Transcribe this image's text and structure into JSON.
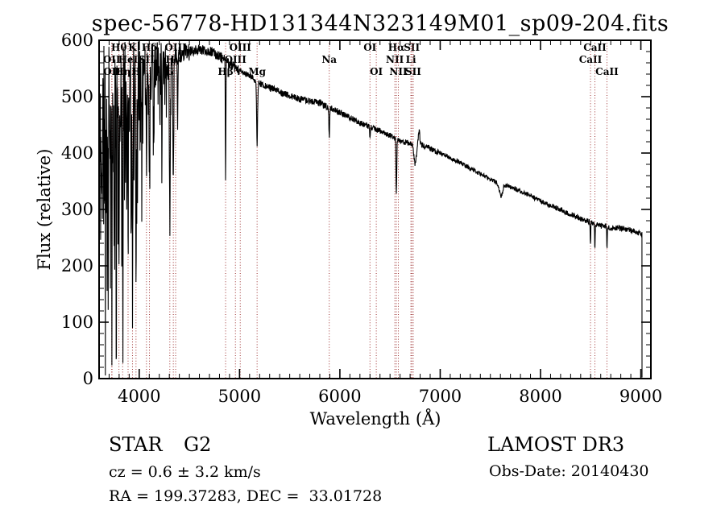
{
  "title": "spec-56778-HD131344N323149M01_sp09-204.fits",
  "chart_data": {
    "type": "line",
    "title": "spec-56778-HD131344N323149M01_sp09-204.fits",
    "xlabel": "Wavelength (Å)",
    "ylabel": "Flux (relative)",
    "xlim": [
      3600,
      9100
    ],
    "ylim": [
      0,
      600
    ],
    "x_ticks": [
      4000,
      5000,
      6000,
      7000,
      8000,
      9000
    ],
    "y_ticks": [
      0,
      100,
      200,
      300,
      400,
      500,
      600
    ],
    "x_minor_step": 100,
    "y_minor_step": 20,
    "line_color": "#000000",
    "marker_color": "#9e3232",
    "series_start": 3608,
    "series_end": 9012,
    "continuum": [
      [
        3608,
        380
      ],
      [
        3650,
        430
      ],
      [
        3700,
        470
      ],
      [
        3750,
        490
      ],
      [
        3800,
        505
      ],
      [
        3850,
        515
      ],
      [
        3900,
        525
      ],
      [
        3950,
        535
      ],
      [
        4000,
        542
      ],
      [
        4100,
        552
      ],
      [
        4200,
        560
      ],
      [
        4300,
        566
      ],
      [
        4400,
        574
      ],
      [
        4500,
        580
      ],
      [
        4600,
        583
      ],
      [
        4700,
        581
      ],
      [
        4800,
        572
      ],
      [
        4900,
        558
      ],
      [
        5000,
        545
      ],
      [
        5100,
        537
      ],
      [
        5200,
        524
      ],
      [
        5300,
        516
      ],
      [
        5400,
        509
      ],
      [
        5500,
        501
      ],
      [
        5600,
        496
      ],
      [
        5700,
        492
      ],
      [
        5800,
        489
      ],
      [
        5900,
        480
      ],
      [
        6000,
        472
      ],
      [
        6100,
        463
      ],
      [
        6200,
        453
      ],
      [
        6300,
        446
      ],
      [
        6400,
        439
      ],
      [
        6500,
        431
      ],
      [
        6600,
        422
      ],
      [
        6700,
        417
      ],
      [
        6800,
        416
      ],
      [
        6900,
        408
      ],
      [
        7000,
        400
      ],
      [
        7100,
        391
      ],
      [
        7200,
        383
      ],
      [
        7300,
        373
      ],
      [
        7400,
        363
      ],
      [
        7500,
        353
      ],
      [
        7600,
        346
      ],
      [
        7700,
        340
      ],
      [
        7800,
        332
      ],
      [
        7900,
        324
      ],
      [
        8000,
        315
      ],
      [
        8100,
        307
      ],
      [
        8200,
        299
      ],
      [
        8300,
        291
      ],
      [
        8400,
        284
      ],
      [
        8500,
        277
      ],
      [
        8600,
        271
      ],
      [
        8700,
        267
      ],
      [
        8800,
        267
      ],
      [
        8900,
        263
      ],
      [
        8980,
        258
      ],
      [
        9012,
        255
      ]
    ],
    "absorption_lines": [
      {
        "center": 3727,
        "depth": 240,
        "width": 4
      },
      {
        "center": 3750,
        "depth": 300,
        "width": 3
      },
      {
        "center": 3770,
        "depth": 200,
        "width": 3
      },
      {
        "center": 3798,
        "depth": 280,
        "width": 4
      },
      {
        "center": 3835,
        "depth": 370,
        "width": 4
      },
      {
        "center": 3889,
        "depth": 300,
        "width": 4
      },
      {
        "center": 3933,
        "depth": 395,
        "width": 5
      },
      {
        "center": 3968,
        "depth": 330,
        "width": 5
      },
      {
        "center": 4026,
        "depth": 140,
        "width": 4
      },
      {
        "center": 4072,
        "depth": 190,
        "width": 4
      },
      {
        "center": 4102,
        "depth": 215,
        "width": 5
      },
      {
        "center": 4144,
        "depth": 110,
        "width": 4
      },
      {
        "center": 4226,
        "depth": 140,
        "width": 4
      },
      {
        "center": 4305,
        "depth": 270,
        "width": 7
      },
      {
        "center": 4340,
        "depth": 225,
        "width": 5
      },
      {
        "center": 4383,
        "depth": 140,
        "width": 4
      },
      {
        "center": 4861,
        "depth": 210,
        "width": 4
      },
      {
        "center": 5175,
        "depth": 115,
        "width": 7
      },
      {
        "center": 5894,
        "depth": 52,
        "width": 6
      },
      {
        "center": 6300,
        "depth": 18,
        "width": 4
      },
      {
        "center": 6563,
        "depth": 102,
        "width": 5
      },
      {
        "center": 6750,
        "depth": 38,
        "width": 16
      },
      {
        "center": 6790,
        "depth": -22,
        "width": 10
      },
      {
        "center": 7605,
        "depth": 22,
        "width": 22
      },
      {
        "center": 8498,
        "depth": 40,
        "width": 4
      },
      {
        "center": 8542,
        "depth": 50,
        "width": 4
      },
      {
        "center": 8662,
        "depth": 40,
        "width": 4
      }
    ],
    "noise_regions": [
      [
        3600,
        3700,
        170
      ],
      [
        3700,
        4000,
        85
      ],
      [
        4000,
        4300,
        42
      ],
      [
        4300,
        4500,
        16
      ],
      [
        4500,
        5000,
        9
      ],
      [
        5000,
        6000,
        6
      ],
      [
        6000,
        7000,
        5
      ],
      [
        7000,
        8000,
        4
      ],
      [
        8000,
        9012,
        5
      ]
    ],
    "line_markers": [
      {
        "label": "OII",
        "wavelength": 3726,
        "row": 2
      },
      {
        "label": "OII",
        "wavelength": 3729,
        "row": 3
      },
      {
        "label": "Hθ",
        "wavelength": 3798,
        "row": 1
      },
      {
        "label": "Hη",
        "wavelength": 3835,
        "row": 3
      },
      {
        "label": "HeI",
        "wavelength": 3889,
        "row": 2
      },
      {
        "label": "K",
        "wavelength": 3933,
        "row": 1
      },
      {
        "label": "H",
        "wavelength": 3968,
        "row": 3
      },
      {
        "label": "SII",
        "wavelength": 4072,
        "row": 2
      },
      {
        "label": "Hδ",
        "wavelength": 4102,
        "row": 1
      },
      {
        "label": "G",
        "wavelength": 4305,
        "row": 3
      },
      {
        "label": "Hγ",
        "wavelength": 4340,
        "row": 2
      },
      {
        "label": "OIII",
        "wavelength": 4363,
        "row": 1
      },
      {
        "label": "Hβ",
        "wavelength": 4861,
        "row": 3
      },
      {
        "label": "OIII",
        "wavelength": 4959,
        "row": 2
      },
      {
        "label": "OIII",
        "wavelength": 5007,
        "row": 1
      },
      {
        "label": "Mg",
        "wavelength": 5175,
        "row": 3
      },
      {
        "label": "Na",
        "wavelength": 5894,
        "row": 2
      },
      {
        "label": "OI",
        "wavelength": 6300,
        "row": 1
      },
      {
        "label": "OI",
        "wavelength": 6363,
        "row": 3
      },
      {
        "label": "NII",
        "wavelength": 6548,
        "row": 2
      },
      {
        "label": "Hα",
        "wavelength": 6563,
        "row": 1
      },
      {
        "label": "NII",
        "wavelength": 6583,
        "row": 3
      },
      {
        "label": "Li",
        "wavelength": 6708,
        "row": 2
      },
      {
        "label": "SII",
        "wavelength": 6717,
        "row": 1
      },
      {
        "label": "SII",
        "wavelength": 6731,
        "row": 3
      },
      {
        "label": "CaII",
        "wavelength": 8498,
        "row": 2
      },
      {
        "label": "CaII",
        "wavelength": 8542,
        "row": 1
      },
      {
        "label": "CaII",
        "wavelength": 8662,
        "row": 3
      }
    ]
  },
  "annotations": {
    "class_label": "STAR",
    "subclass_label": "G2",
    "cz_line": "cz = 0.6 ± 3.2 km/s",
    "radec_line": "RA = 199.37283, DEC =  33.01728",
    "survey": "LAMOST DR3",
    "obs_date_line": "Obs-Date: 20140430"
  }
}
